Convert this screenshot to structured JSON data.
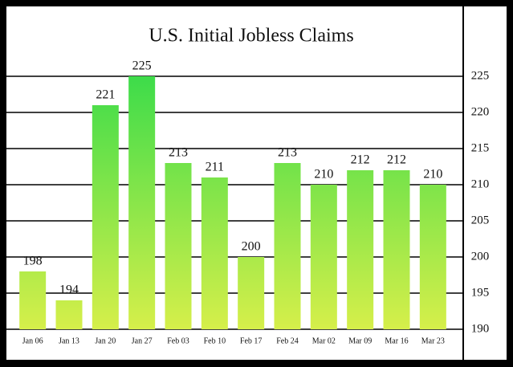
{
  "chart_data": {
    "type": "bar",
    "title": "U.S. Initial Jobless Claims",
    "categories": [
      "Jan 06",
      "Jan 13",
      "Jan 20",
      "Jan 27",
      "Feb 03",
      "Feb 10",
      "Feb 17",
      "Feb 24",
      "Mar 02",
      "Mar 09",
      "Mar 16",
      "Mar 23"
    ],
    "values": [
      198,
      194,
      221,
      225,
      213,
      211,
      200,
      213,
      210,
      212,
      212,
      210
    ],
    "color_top": "#3ddc4a",
    "color_bottom": "#d6ef4a",
    "ylim": [
      190,
      234
    ],
    "yticks": [
      190,
      195,
      200,
      205,
      210,
      215,
      220,
      225
    ],
    "y_axis_side": "right",
    "grid": true
  }
}
